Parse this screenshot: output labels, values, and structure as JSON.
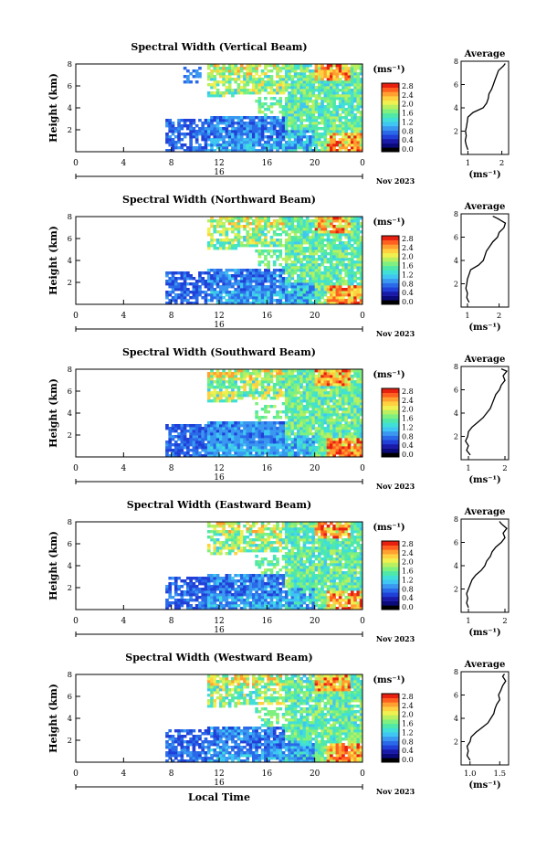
{
  "figure": {
    "xlabel": "Local Time",
    "day_label": "16",
    "month_label": "Nov 2023",
    "units_label": "(ms⁻¹)",
    "average_xlabel": "(ms⁻¹)",
    "average_title": "Average",
    "ylabel": "Height (km)"
  },
  "colorbar": {
    "ticks": [
      "0.0",
      "0.4",
      "0.8",
      "1.2",
      "1.6",
      "2.0",
      "2.4",
      "2.8"
    ],
    "colors": [
      "#000000",
      "#0a0a7a",
      "#1a1aa8",
      "#2040d8",
      "#2a6ae8",
      "#3a98f0",
      "#3fc6f2",
      "#40e0d8",
      "#50e8a8",
      "#7ef080",
      "#b8f060",
      "#f0f050",
      "#ffd040",
      "#ffa030",
      "#ff6020",
      "#e82010"
    ]
  },
  "chart_data": [
    {
      "type": "heatmap",
      "title": "Spectral Width (Vertical Beam)",
      "xlabel": "Local Time",
      "ylabel": "Height (km)",
      "x_ticks": [
        "0",
        "4",
        "8",
        "12",
        "16",
        "20",
        "0"
      ],
      "y_ticks": [
        "2",
        "4",
        "6",
        "8"
      ],
      "xlim": [
        0,
        24
      ],
      "ylim": [
        0,
        8
      ],
      "z_label": "(ms⁻¹)",
      "zlim": [
        0,
        2.8
      ],
      "average_profile": {
        "title": "Average",
        "xlabel": "(ms⁻¹)",
        "x_ticks": [
          "1",
          "2"
        ],
        "xlim": [
          0.8,
          2.2
        ],
        "height": [
          0.4,
          0.8,
          1.2,
          1.6,
          2.0,
          2.4,
          2.8,
          3.2,
          3.6,
          4.0,
          4.4,
          4.8,
          5.2,
          5.6,
          6.0,
          6.4,
          6.8,
          7.2,
          7.6,
          7.8
        ],
        "value": [
          1.0,
          0.95,
          0.92,
          0.95,
          0.93,
          0.96,
          0.98,
          1.0,
          1.15,
          1.45,
          1.55,
          1.6,
          1.62,
          1.7,
          1.75,
          1.8,
          1.85,
          1.9,
          2.05,
          2.1
        ]
      }
    },
    {
      "type": "heatmap",
      "title": "Spectral Width (Northward Beam)",
      "xlabel": "Local Time",
      "ylabel": "Height (km)",
      "x_ticks": [
        "0",
        "4",
        "8",
        "12",
        "16",
        "20",
        "0"
      ],
      "y_ticks": [
        "2",
        "4",
        "6",
        "8"
      ],
      "xlim": [
        0,
        24
      ],
      "ylim": [
        0,
        8
      ],
      "z_label": "(ms⁻¹)",
      "zlim": [
        0,
        2.8
      ],
      "average_profile": {
        "title": "Average",
        "xlabel": "(ms⁻¹)",
        "x_ticks": [
          "1",
          "2"
        ],
        "xlim": [
          0.8,
          2.3
        ],
        "height": [
          0.4,
          0.8,
          1.2,
          1.6,
          2.0,
          2.4,
          2.8,
          3.2,
          3.6,
          4.0,
          4.4,
          4.8,
          5.2,
          5.6,
          6.0,
          6.4,
          6.8,
          7.2,
          7.6,
          7.8
        ],
        "value": [
          1.05,
          0.98,
          1.0,
          0.95,
          0.98,
          1.0,
          1.05,
          1.1,
          1.35,
          1.5,
          1.55,
          1.6,
          1.7,
          1.8,
          1.95,
          2.0,
          2.15,
          2.2,
          1.95,
          1.8
        ]
      }
    },
    {
      "type": "heatmap",
      "title": "Spectral Width (Southward Beam)",
      "xlabel": "Local Time",
      "ylabel": "Height (km)",
      "x_ticks": [
        "0",
        "4",
        "8",
        "12",
        "16",
        "20",
        "0"
      ],
      "y_ticks": [
        "2",
        "4",
        "6",
        "8"
      ],
      "xlim": [
        0,
        24
      ],
      "ylim": [
        0,
        8
      ],
      "z_label": "(ms⁻¹)",
      "zlim": [
        0,
        2.8
      ],
      "average_profile": {
        "title": "Average",
        "xlabel": "(ms⁻¹)",
        "x_ticks": [
          "1",
          "2"
        ],
        "xlim": [
          0.8,
          2.1
        ],
        "height": [
          0.4,
          0.8,
          1.2,
          1.6,
          2.0,
          2.4,
          2.8,
          3.2,
          3.6,
          4.0,
          4.4,
          4.8,
          5.2,
          5.6,
          6.0,
          6.4,
          6.8,
          7.2,
          7.6,
          7.8
        ],
        "value": [
          1.05,
          0.95,
          1.0,
          0.92,
          0.98,
          1.0,
          1.1,
          1.25,
          1.4,
          1.5,
          1.6,
          1.65,
          1.7,
          1.75,
          1.85,
          1.9,
          2.0,
          1.95,
          2.05,
          1.9
        ]
      }
    },
    {
      "type": "heatmap",
      "title": "Spectral Width (Eastward Beam)",
      "xlabel": "Local Time",
      "ylabel": "Height (km)",
      "x_ticks": [
        "0",
        "4",
        "8",
        "12",
        "16",
        "20",
        "0"
      ],
      "y_ticks": [
        "2",
        "4",
        "6",
        "8"
      ],
      "xlim": [
        0,
        24
      ],
      "ylim": [
        0,
        8
      ],
      "z_label": "(ms⁻¹)",
      "zlim": [
        0,
        2.8
      ],
      "average_profile": {
        "title": "Average",
        "xlabel": "(ms⁻¹)",
        "x_ticks": [
          "1",
          "2"
        ],
        "xlim": [
          0.8,
          2.1
        ],
        "height": [
          0.4,
          0.8,
          1.2,
          1.6,
          2.0,
          2.4,
          2.8,
          3.2,
          3.6,
          4.0,
          4.4,
          4.8,
          5.2,
          5.6,
          6.0,
          6.4,
          6.8,
          7.2,
          7.6,
          7.8
        ],
        "value": [
          1.0,
          0.95,
          0.98,
          0.95,
          1.0,
          1.05,
          1.1,
          1.2,
          1.35,
          1.45,
          1.5,
          1.6,
          1.65,
          1.75,
          1.9,
          2.0,
          1.95,
          2.05,
          1.9,
          1.85
        ]
      }
    },
    {
      "type": "heatmap",
      "title": "Spectral Width (Westward Beam)",
      "xlabel": "Local Time",
      "ylabel": "Height (km)",
      "x_ticks": [
        "0",
        "4",
        "8",
        "12",
        "16",
        "20",
        "0"
      ],
      "y_ticks": [
        "2",
        "4",
        "6",
        "8"
      ],
      "xlim": [
        0,
        24
      ],
      "ylim": [
        0,
        8
      ],
      "z_label": "(ms⁻¹)",
      "zlim": [
        0,
        2.8
      ],
      "average_profile": {
        "title": "Average",
        "xlabel": "(ms⁻¹)",
        "x_ticks": [
          "1.0",
          "1.5"
        ],
        "xlim": [
          0.85,
          1.65
        ],
        "height": [
          0.4,
          0.8,
          1.2,
          1.6,
          2.0,
          2.4,
          2.8,
          3.2,
          3.6,
          4.0,
          4.4,
          4.8,
          5.2,
          5.6,
          6.0,
          6.4,
          6.8,
          7.2,
          7.6,
          7.8
        ],
        "value": [
          1.0,
          0.95,
          0.97,
          0.95,
          1.0,
          1.02,
          1.1,
          1.2,
          1.3,
          1.35,
          1.4,
          1.42,
          1.45,
          1.5,
          1.48,
          1.52,
          1.55,
          1.6,
          1.55,
          1.58
        ]
      }
    }
  ]
}
